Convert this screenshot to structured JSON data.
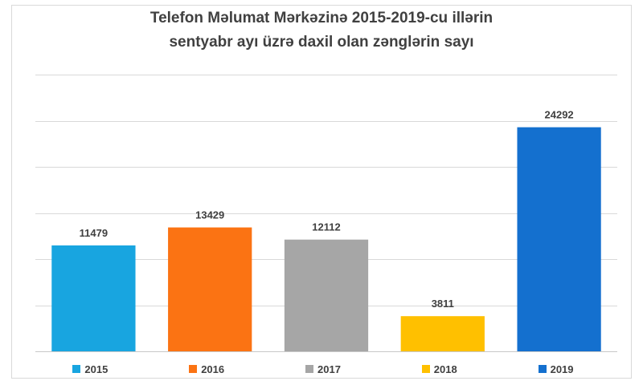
{
  "chart_data": {
    "type": "bar",
    "title_lines": [
      "Telefon Məlumat Mərkəzinə 2015-2019-cu illərin",
      "sentyabr ayı üzrə daxil olan zənglərin sayı"
    ],
    "categories": [
      "2015",
      "2016",
      "2017",
      "2018",
      "2019"
    ],
    "values": [
      11479,
      13429,
      12112,
      3811,
      24292
    ],
    "colors": [
      "#18a5e0",
      "#fb7313",
      "#a6a6a6",
      "#ffc000",
      "#1470cf"
    ],
    "ylim": [
      0,
      30000
    ],
    "y_gridline_step": 5000,
    "grid": true,
    "legend_position": "bottom",
    "data_labels": true,
    "y_axis_labels_shown": false
  }
}
